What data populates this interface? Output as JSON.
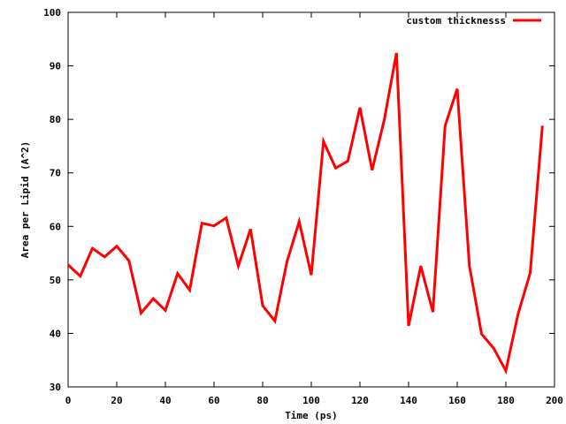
{
  "chart_data": {
    "type": "line",
    "title": "",
    "xlabel": "Time (ps)",
    "ylabel": "Area per Lipid (A^2)",
    "xlim": [
      0,
      200
    ],
    "ylim": [
      30,
      100
    ],
    "xticks": [
      "0",
      "20",
      "40",
      "60",
      "80",
      "100",
      "120",
      "140",
      "160",
      "180",
      "200"
    ],
    "yticks": [
      "30",
      "40",
      "50",
      "60",
      "70",
      "80",
      "90",
      "100"
    ],
    "grid": false,
    "legend_position": "top-right",
    "series": [
      {
        "name": "custom thicknesss",
        "color": "#ff0000",
        "x": [
          0,
          5,
          10,
          15,
          20,
          25,
          30,
          35,
          40,
          45,
          50,
          55,
          60,
          65,
          70,
          75,
          80,
          85,
          90,
          95,
          100,
          105,
          110,
          115,
          120,
          125,
          130,
          135,
          140,
          145,
          150,
          155,
          160,
          165,
          170,
          175,
          180,
          185,
          190,
          195
        ],
        "y": [
          52.8,
          50.7,
          55.9,
          54.3,
          56.3,
          53.6,
          43.8,
          46.5,
          44.3,
          51.2,
          48.1,
          60.6,
          60.1,
          61.6,
          52.6,
          59.5,
          45.2,
          42.3,
          53.4,
          60.9,
          50.9,
          75.9,
          70.9,
          72.2,
          82.2,
          70.5,
          79.9,
          92.4,
          41.4,
          52.6,
          44.0,
          78.8,
          85.7,
          52.6,
          39.9,
          37.2,
          33.0,
          43.6,
          51.3,
          78.8
        ]
      }
    ]
  }
}
